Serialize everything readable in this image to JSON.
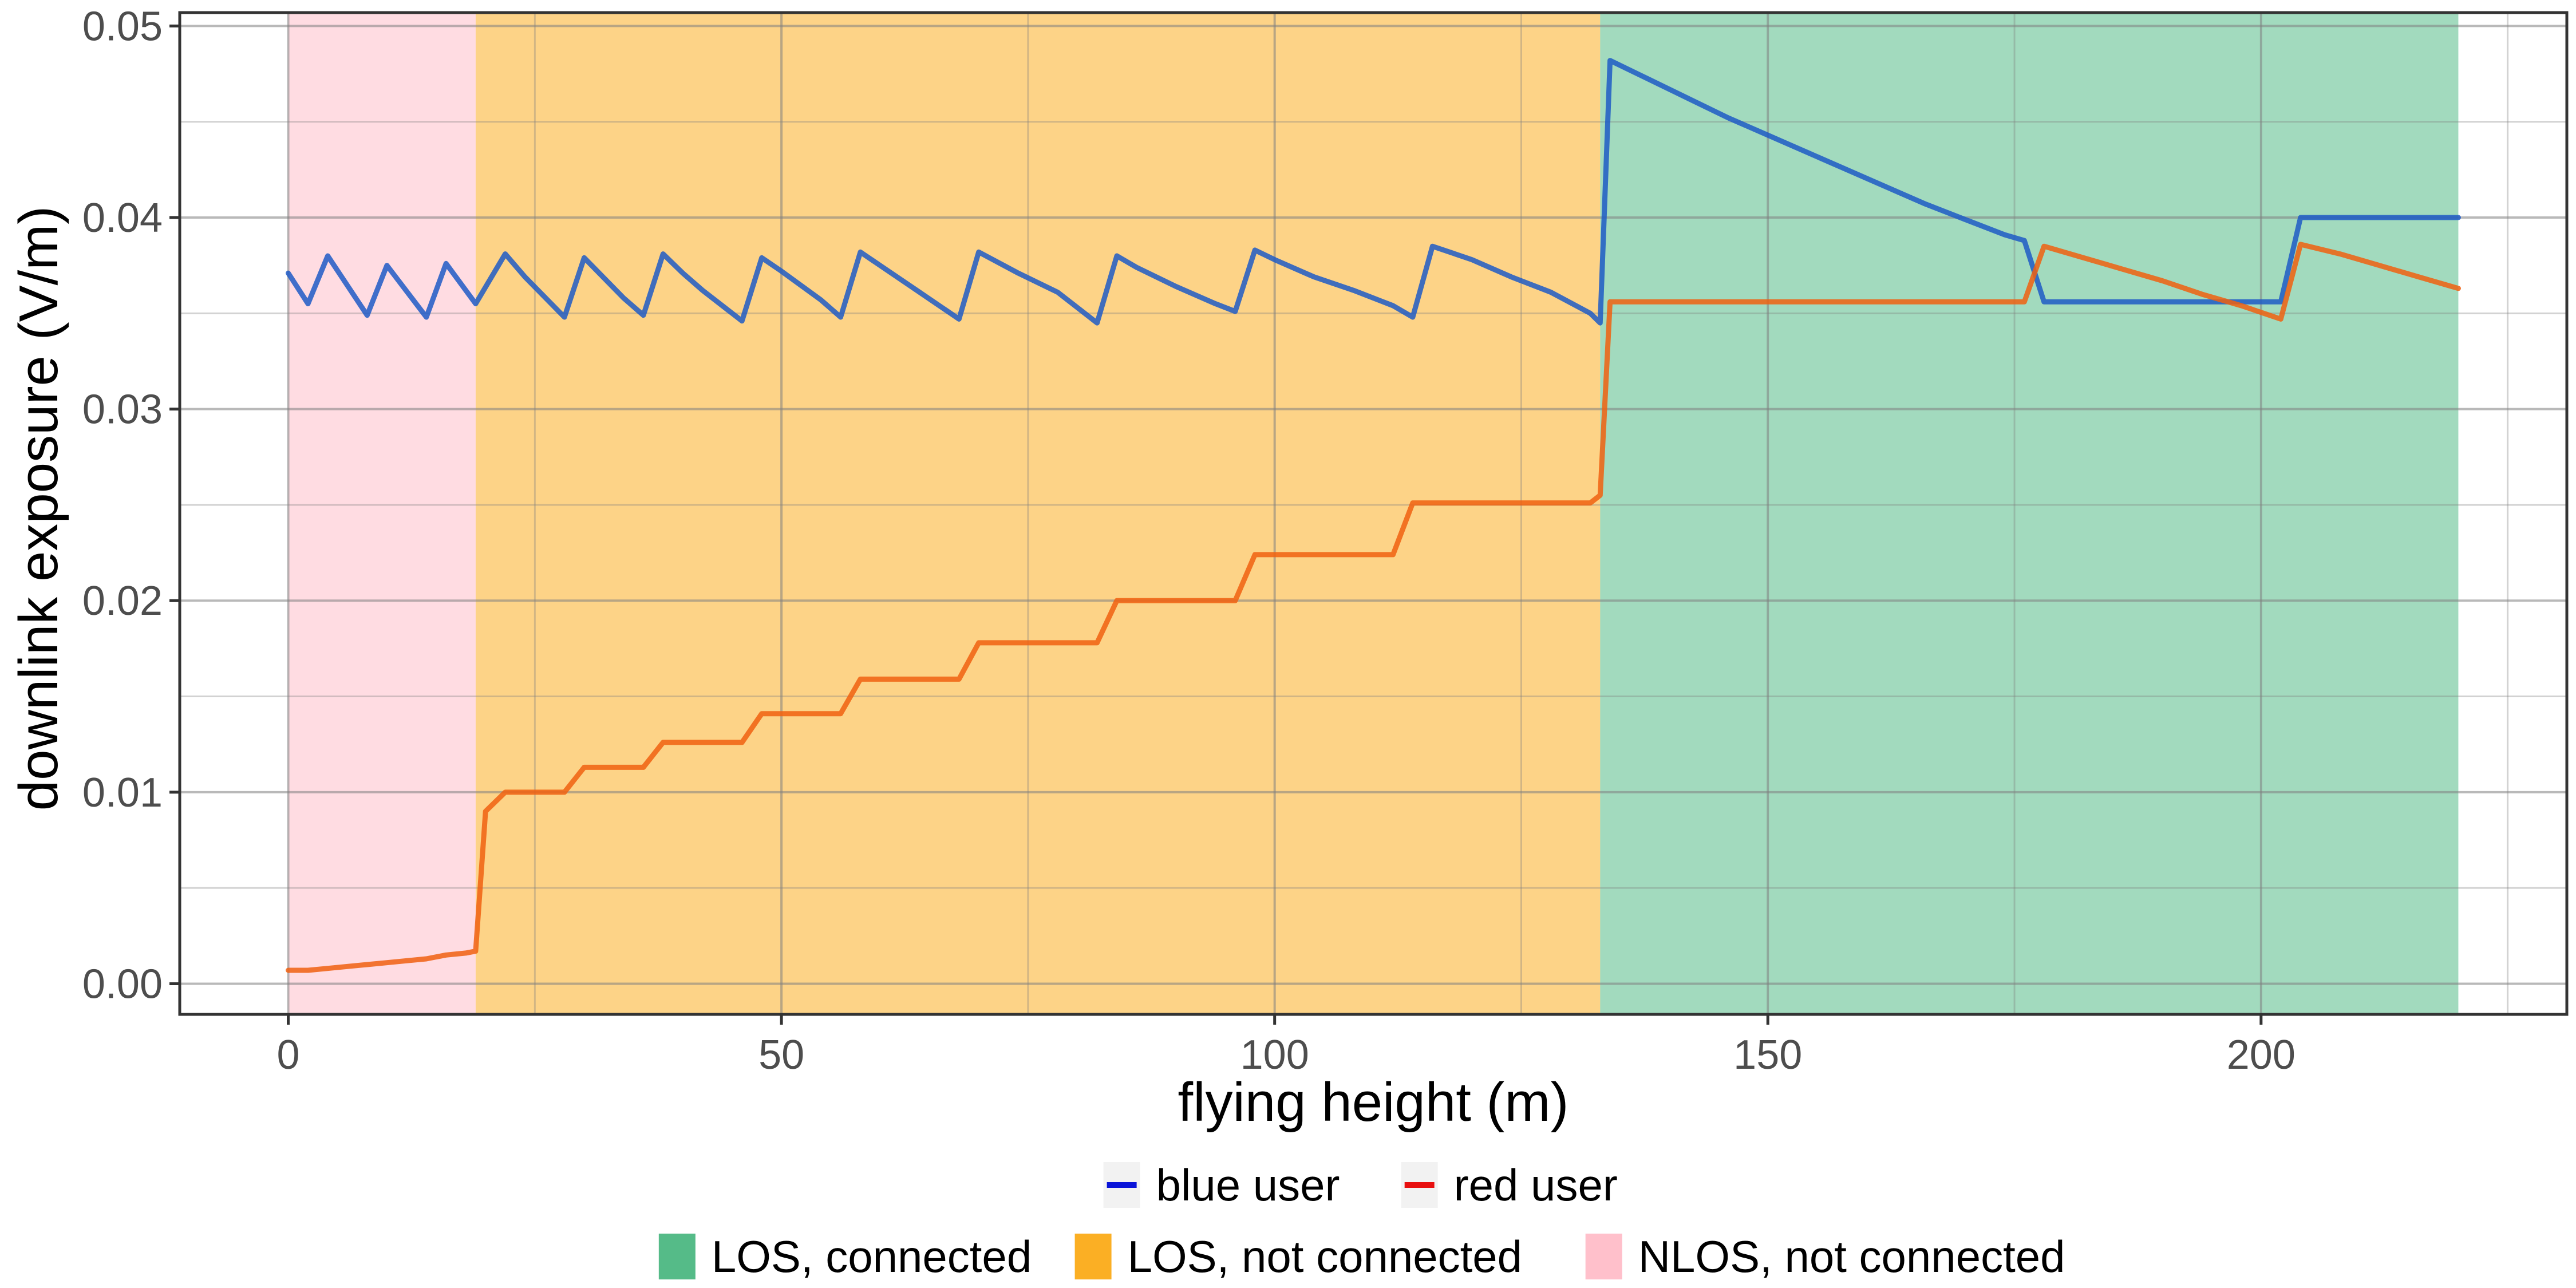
{
  "chart_data": {
    "type": "line",
    "xlabel": "flying height (m)",
    "ylabel": "downlink exposure (V/m)",
    "xlim": [
      -11,
      231
    ],
    "ylim": [
      -0.0016,
      0.0507
    ],
    "x_ticks": [
      0,
      50,
      100,
      150,
      200
    ],
    "x_tick_labels": [
      "0",
      "50",
      "100",
      "150",
      "200"
    ],
    "y_ticks": [
      0.0,
      0.01,
      0.02,
      0.03,
      0.04,
      0.05
    ],
    "y_tick_labels": [
      "0.00",
      "0.01",
      "0.02",
      "0.03",
      "0.04",
      "0.05"
    ],
    "grid": true,
    "legend_placement": "bottom",
    "regions": [
      {
        "name": "NLOS, not connected",
        "x_start": 0,
        "x_end": 19,
        "color": "#FFC0CB"
      },
      {
        "name": "LOS, not connected",
        "x_start": 19,
        "x_end": 133,
        "color": "#FBAF24"
      },
      {
        "name": "LOS, connected",
        "x_start": 133,
        "x_end": 220,
        "color": "#55BB88"
      }
    ],
    "series": [
      {
        "name": "blue user",
        "color": "#1F5BC6",
        "legend_color": "#0A14D8",
        "x": [
          0,
          2,
          4,
          8,
          10,
          14,
          16,
          19,
          22,
          24,
          28,
          30,
          34,
          36,
          38,
          40,
          42,
          46,
          48,
          50,
          54,
          56,
          58,
          60,
          64,
          68,
          70,
          74,
          78,
          82,
          84,
          86,
          90,
          94,
          96,
          98,
          100,
          104,
          108,
          112,
          114,
          116,
          120,
          124,
          128,
          132,
          133,
          134,
          138,
          142,
          146,
          150,
          154,
          158,
          162,
          166,
          170,
          174,
          176,
          178,
          182,
          186,
          190,
          194,
          198,
          202,
          204,
          208,
          212,
          216,
          220
        ],
        "y": [
          0.0371,
          0.0355,
          0.038,
          0.0349,
          0.0375,
          0.0348,
          0.0376,
          0.0355,
          0.0381,
          0.0369,
          0.0348,
          0.0379,
          0.0358,
          0.0349,
          0.0381,
          0.0371,
          0.0362,
          0.0346,
          0.0379,
          0.0372,
          0.0357,
          0.0348,
          0.0382,
          0.0375,
          0.0361,
          0.0347,
          0.0382,
          0.0371,
          0.0361,
          0.0345,
          0.038,
          0.0374,
          0.0364,
          0.0355,
          0.0351,
          0.0383,
          0.0378,
          0.0369,
          0.0362,
          0.0354,
          0.0348,
          0.0385,
          0.0378,
          0.0369,
          0.0361,
          0.035,
          0.0345,
          0.0482,
          0.0472,
          0.0462,
          0.0452,
          0.0443,
          0.0434,
          0.0425,
          0.0416,
          0.0407,
          0.0399,
          0.0391,
          0.0388,
          0.0356,
          0.0356,
          0.0356,
          0.0356,
          0.0356,
          0.0356,
          0.0356,
          0.04,
          0.04,
          0.04,
          0.04,
          0.04
        ]
      },
      {
        "name": "red user",
        "color": "#F06010",
        "legend_color": "#E81010",
        "x": [
          0,
          2,
          4,
          6,
          8,
          10,
          12,
          14,
          16,
          18,
          19,
          20,
          22,
          24,
          26,
          28,
          30,
          32,
          34,
          36,
          38,
          40,
          42,
          44,
          46,
          48,
          50,
          52,
          54,
          56,
          58,
          60,
          62,
          64,
          66,
          68,
          70,
          72,
          74,
          76,
          78,
          80,
          82,
          84,
          86,
          88,
          90,
          92,
          94,
          96,
          98,
          100,
          102,
          104,
          106,
          108,
          110,
          112,
          114,
          116,
          118,
          120,
          122,
          124,
          126,
          128,
          130,
          132,
          133,
          134,
          140,
          150,
          160,
          170,
          176,
          178,
          182,
          186,
          190,
          194,
          198,
          202,
          204,
          208,
          212,
          216,
          220
        ],
        "y": [
          0.0007,
          0.0007,
          0.0008,
          0.0009,
          0.001,
          0.0011,
          0.0012,
          0.0013,
          0.0015,
          0.0016,
          0.0017,
          0.009,
          0.01,
          0.01,
          0.01,
          0.01,
          0.0113,
          0.0113,
          0.0113,
          0.0113,
          0.0126,
          0.0126,
          0.0126,
          0.0126,
          0.0126,
          0.0141,
          0.0141,
          0.0141,
          0.0141,
          0.0141,
          0.0159,
          0.0159,
          0.0159,
          0.0159,
          0.0159,
          0.0159,
          0.0178,
          0.0178,
          0.0178,
          0.0178,
          0.0178,
          0.0178,
          0.0178,
          0.02,
          0.02,
          0.02,
          0.02,
          0.02,
          0.02,
          0.02,
          0.0224,
          0.0224,
          0.0224,
          0.0224,
          0.0224,
          0.0224,
          0.0224,
          0.0224,
          0.0251,
          0.0251,
          0.0251,
          0.0251,
          0.0251,
          0.0251,
          0.0251,
          0.0251,
          0.0251,
          0.0251,
          0.0255,
          0.0356,
          0.0356,
          0.0356,
          0.0356,
          0.0356,
          0.0356,
          0.0385,
          0.0379,
          0.0373,
          0.0367,
          0.036,
          0.0354,
          0.0347,
          0.0386,
          0.0381,
          0.0375,
          0.0369,
          0.0363
        ]
      }
    ]
  }
}
